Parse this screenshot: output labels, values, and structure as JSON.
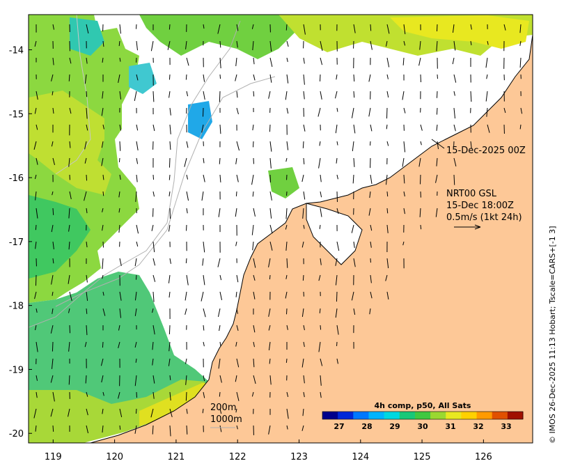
{
  "map": {
    "lon_range": [
      118.6,
      126.8
    ],
    "lat_range": [
      -20.15,
      -13.45
    ],
    "x_ticks": [
      "119",
      "120",
      "121",
      "122",
      "123",
      "124",
      "125",
      "126"
    ],
    "y_ticks": [
      "-14",
      "-15",
      "-16",
      "-17",
      "-18",
      "-19",
      "-20"
    ],
    "colors": {
      "land": "#fdc897",
      "cloud": "#ffffff",
      "frame": "#000000",
      "contour": "#b0b0b0"
    }
  },
  "annotations": {
    "sat_time": "15-Dec-2025 00Z",
    "current_source": "NRT00 GSL",
    "current_time": "15-Dec 18:00Z",
    "vector_scale": "0.5m/s (1kt 24h)",
    "contour_200": "200m",
    "contour_1000": "1000m"
  },
  "colorbar": {
    "title": "4h comp, p50, All Sats",
    "ticks": [
      "27",
      "28",
      "29",
      "30",
      "31",
      "32",
      "33"
    ],
    "range": [
      26.4,
      33.6
    ],
    "colors": [
      "#00008b",
      "#0028d8",
      "#0078ff",
      "#00b4ff",
      "#00d8e0",
      "#18c878",
      "#40c840",
      "#9ad830",
      "#e8e820",
      "#ffd000",
      "#ff9a00",
      "#e05000",
      "#a01000"
    ]
  },
  "credit": "© IMOS 26-Dec-2025 11:13 Hobart; Tscale=CARS+[-1 3]"
}
